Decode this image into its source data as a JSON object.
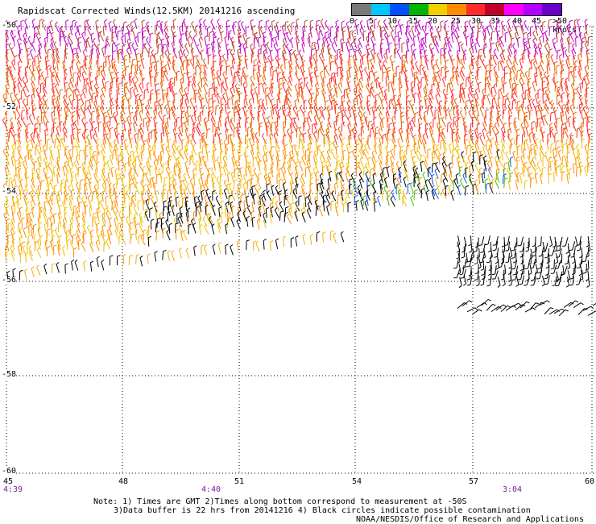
{
  "title": "Rapidscat Corrected Winds(12.5KM) 20141216 ascending",
  "legend": {
    "labels": [
      "0",
      "5",
      "10",
      "15",
      "20",
      "25",
      "30",
      "35",
      "40",
      "45",
      ">50 knots"
    ],
    "colors": [
      "#7a7a7a",
      "#00c8ff",
      "#0050ff",
      "#00b400",
      "#f0d000",
      "#ff8c00",
      "#ff2a2a",
      "#c0002a",
      "#ff00ff",
      "#b400ff",
      "#6a00c8"
    ]
  },
  "map": {
    "lat_labels": [
      "-50",
      "-52",
      "-54",
      "-56",
      "-58",
      "-60"
    ],
    "lon_labels": [
      "45",
      "48",
      "51",
      "54",
      "57",
      "60"
    ],
    "time_labels": [
      "4:39",
      "4:40",
      "3:04"
    ],
    "lat_range": [
      -60,
      -50
    ],
    "lon_range": [
      45,
      60
    ]
  },
  "notes": {
    "line1": "Note: 1) Times are GMT 2)Times along bottom correspond to measurement at -50S",
    "line2": "3)Data buffer is 22 hrs from 20141216 4) Black circles indicate possible contamination",
    "credit": "NOAA/NESDIS/Office of Research and Applications"
  }
}
